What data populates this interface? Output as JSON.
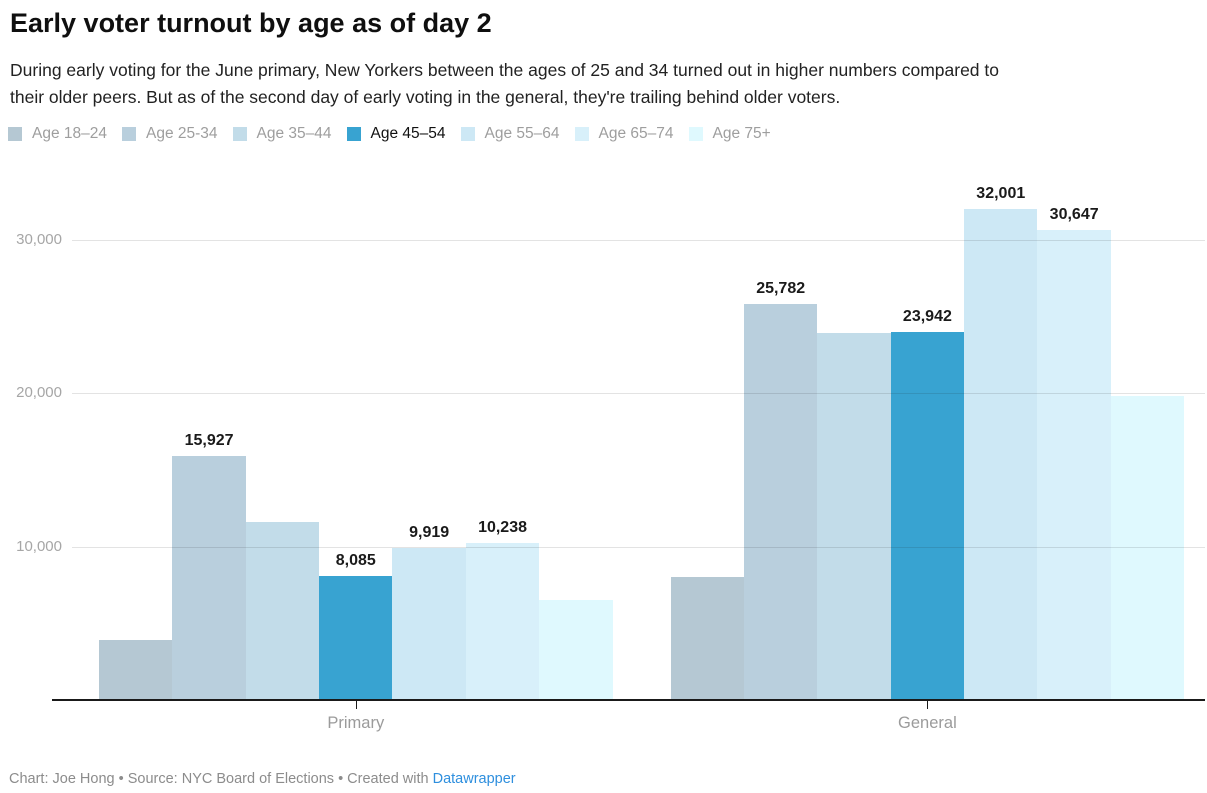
{
  "header": {
    "title": "Early voter turnout by age as of day 2",
    "description_lines": [
      "During early voting for the June primary, New Yorkers between the ages of 25 and 34 turned out in higher numbers compared to",
      "their older peers. But as of the second day of early voting in the general, they're trailing behind older voters."
    ]
  },
  "legend": {
    "items": [
      {
        "label": "Age 18–24",
        "color": "#b5c8d3",
        "active": false
      },
      {
        "label": "Age 25-34",
        "color": "#b9cfdd",
        "active": false
      },
      {
        "label": "Age 35–44",
        "color": "#c2dce9",
        "active": false
      },
      {
        "label": "Age 45–54",
        "color": "#38a3d1",
        "active": true
      },
      {
        "label": "Age 55–64",
        "color": "#cde8f5",
        "active": false
      },
      {
        "label": "Age 65–74",
        "color": "#d8f0fa",
        "active": false
      },
      {
        "label": "Age 75+",
        "color": "#dff9fe",
        "active": false
      }
    ]
  },
  "chart_data": {
    "type": "bar",
    "grouped": true,
    "grid": true,
    "legend_position": "top",
    "categories": [
      "Primary",
      "General"
    ],
    "series": [
      {
        "name": "Age 18–24",
        "color": "#b5c8d3",
        "values": [
          3900,
          8000
        ],
        "value_labels": [
          null,
          null
        ]
      },
      {
        "name": "Age 25-34",
        "color": "#b9cfdd",
        "values": [
          15927,
          25782
        ],
        "value_labels": [
          "15,927",
          "25,782"
        ]
      },
      {
        "name": "Age 35–44",
        "color": "#c2dce9",
        "values": [
          11600,
          23900
        ],
        "value_labels": [
          null,
          null
        ]
      },
      {
        "name": "Age 45–54",
        "color": "#38a3d1",
        "values": [
          8085,
          23942
        ],
        "value_labels": [
          "8,085",
          "23,942"
        ]
      },
      {
        "name": "Age 55–64",
        "color": "#cde8f5",
        "values": [
          9919,
          32001
        ],
        "value_labels": [
          "9,919",
          "32,001"
        ]
      },
      {
        "name": "Age 65–74",
        "color": "#d8f0fa",
        "values": [
          10238,
          30647
        ],
        "value_labels": [
          "10,238",
          "30,647"
        ]
      },
      {
        "name": "Age 75+",
        "color": "#dff9fe",
        "values": [
          6500,
          19800
        ],
        "value_labels": [
          null,
          null
        ]
      }
    ],
    "y_axis": {
      "ticks": [
        "10,000",
        "20,000",
        "30,000"
      ],
      "tick_values": [
        10000,
        20000,
        30000
      ],
      "range": [
        0,
        34500
      ]
    }
  },
  "footer": {
    "credit_prefix": "Chart: Joe Hong • Source: NYC Board of Elections • Created with ",
    "link_label": "Datawrapper",
    "link_color": "#2e8fde"
  }
}
